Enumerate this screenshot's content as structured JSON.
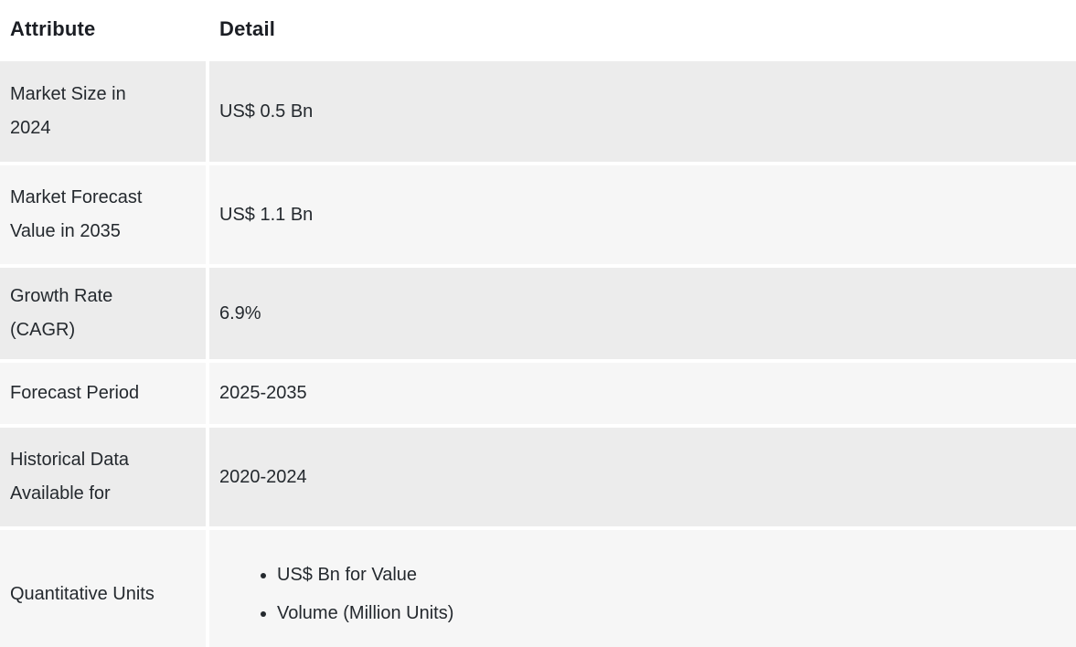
{
  "colors": {
    "row_dark_bg": "#ececec",
    "row_light_bg": "#f6f6f6",
    "gutter": "#ffffff",
    "header_text": "#1b1e24",
    "body_text": "#24292e"
  },
  "table": {
    "columns": {
      "attribute": "Attribute",
      "detail": "Detail"
    },
    "rows": [
      {
        "attribute": "Market Size in 2024",
        "detail": "US$ 0.5 Bn"
      },
      {
        "attribute": "Market Forecast Value in 2035",
        "detail": "US$ 1.1 Bn"
      },
      {
        "attribute": "Growth Rate (CAGR)",
        "detail": "6.9%"
      },
      {
        "attribute": "Forecast Period",
        "detail": "2025-2035"
      },
      {
        "attribute": "Historical Data Available for",
        "detail": "2020-2024"
      },
      {
        "attribute": "Quantitative Units",
        "details": [
          "US$ Bn for Value",
          "Volume (Million Units)"
        ]
      }
    ]
  },
  "chart_data": {
    "type": "table",
    "columns": [
      "Attribute",
      "Detail"
    ],
    "rows": [
      [
        "Market Size in 2024",
        "US$ 0.5 Bn"
      ],
      [
        "Market Forecast Value in 2035",
        "US$ 1.1 Bn"
      ],
      [
        "Growth Rate (CAGR)",
        "6.9%"
      ],
      [
        "Forecast Period",
        "2025-2035"
      ],
      [
        "Historical Data Available for",
        "2020-2024"
      ],
      [
        "Quantitative Units",
        "US$ Bn for Value; Volume (Million Units)"
      ]
    ]
  }
}
